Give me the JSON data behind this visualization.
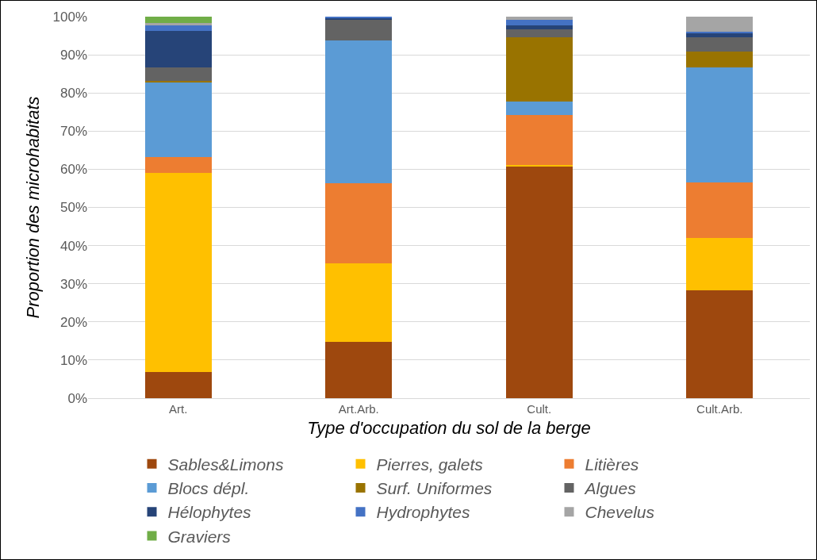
{
  "chart_data": {
    "type": "bar",
    "stacked": true,
    "xlabel": "Type d'occupation du sol de la berge",
    "ylabel": "Proportion des microhabitats",
    "categories": [
      "Art.",
      "Art.Arb.",
      "Cult.",
      "Cult.Arb."
    ],
    "series": [
      {
        "name": "Sables&Limons",
        "color": "#9e480e",
        "values": [
          6.9,
          14.7,
          60.9,
          28.3
        ]
      },
      {
        "name": "Pierres, galets",
        "color": "#ffc000",
        "values": [
          52.1,
          20.7,
          0.3,
          13.6
        ]
      },
      {
        "name": "Litières",
        "color": "#ed7d31",
        "values": [
          4.3,
          20.9,
          13.1,
          14.7
        ]
      },
      {
        "name": "Blocs dépl.",
        "color": "#5b9bd5",
        "values": [
          19.4,
          37.4,
          3.4,
          30
        ]
      },
      {
        "name": "Surf. Uniformes",
        "color": "#997300",
        "values": [
          0.5,
          0,
          16.9,
          4.3
        ]
      },
      {
        "name": "Algues",
        "color": "#636363",
        "values": [
          3.4,
          5.4,
          2.0,
          3.7
        ]
      },
      {
        "name": "Hélophytes",
        "color": "#264478",
        "values": [
          9.6,
          0.6,
          1.1,
          1.1
        ]
      },
      {
        "name": "Hydrophytes",
        "color": "#4472c4",
        "values": [
          1.6,
          0.3,
          1.5,
          0.3
        ]
      },
      {
        "name": "Chevelus",
        "color": "#a5a5a5",
        "values": [
          0.6,
          0,
          0.8,
          4.0
        ]
      },
      {
        "name": "Graviers",
        "color": "#70ad47",
        "values": [
          1.6,
          0,
          0,
          0
        ]
      }
    ],
    "ylim": [
      0,
      100
    ],
    "yticks": [
      {
        "value": 0,
        "label": "0%"
      },
      {
        "value": 10,
        "label": "10%"
      },
      {
        "value": 20,
        "label": "20%"
      },
      {
        "value": 30,
        "label": "30%"
      },
      {
        "value": 40,
        "label": "40%"
      },
      {
        "value": 50,
        "label": "50%"
      },
      {
        "value": 60,
        "label": "60%"
      },
      {
        "value": 70,
        "label": "70%"
      },
      {
        "value": 80,
        "label": "80%"
      },
      {
        "value": 90,
        "label": "90%"
      },
      {
        "value": 100,
        "label": "100%"
      }
    ],
    "grid": "y",
    "legend": "bottom"
  }
}
